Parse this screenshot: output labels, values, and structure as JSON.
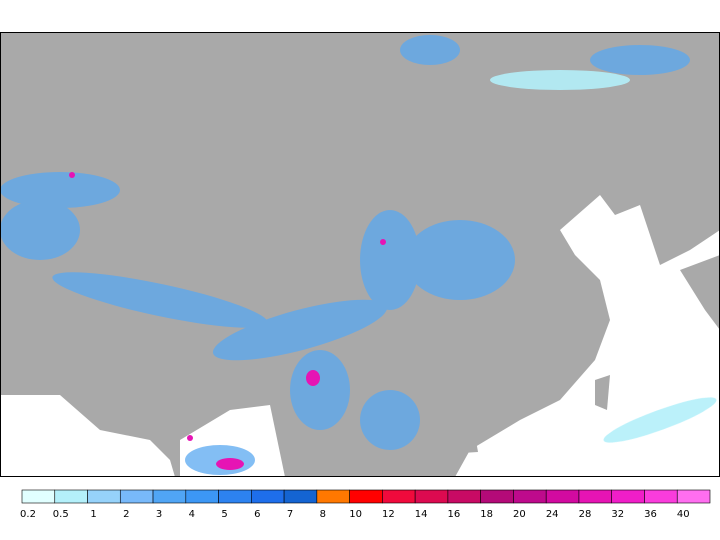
{
  "legend": {
    "levels": [
      {
        "value": 0.2,
        "color": "#e1ffff"
      },
      {
        "value": 0.5,
        "color": "#b4f0fa"
      },
      {
        "value": 1,
        "color": "#96d2fa"
      },
      {
        "value": 2,
        "color": "#78b9fa"
      },
      {
        "value": 3,
        "color": "#50a5f5"
      },
      {
        "value": 4,
        "color": "#3c97f5"
      },
      {
        "value": 5,
        "color": "#2d82f0"
      },
      {
        "value": 6,
        "color": "#1e6eeb"
      },
      {
        "value": 7,
        "color": "#1464d2"
      },
      {
        "value": 8,
        "color": "#ff7800"
      },
      {
        "value": 10,
        "color": "#ff0000"
      },
      {
        "value": 12,
        "color": "#f00a3c"
      },
      {
        "value": 14,
        "color": "#dc0a50"
      },
      {
        "value": 16,
        "color": "#c80a64"
      },
      {
        "value": 18,
        "color": "#b40a78"
      },
      {
        "value": 20,
        "color": "#be0a8c"
      },
      {
        "value": 24,
        "color": "#d20aa0"
      },
      {
        "value": 28,
        "color": "#e614b4"
      },
      {
        "value": 32,
        "color": "#f01ec8"
      },
      {
        "value": 36,
        "color": "#fa3cdc"
      },
      {
        "value": 40,
        "color": "#ff6ef0"
      }
    ]
  }
}
